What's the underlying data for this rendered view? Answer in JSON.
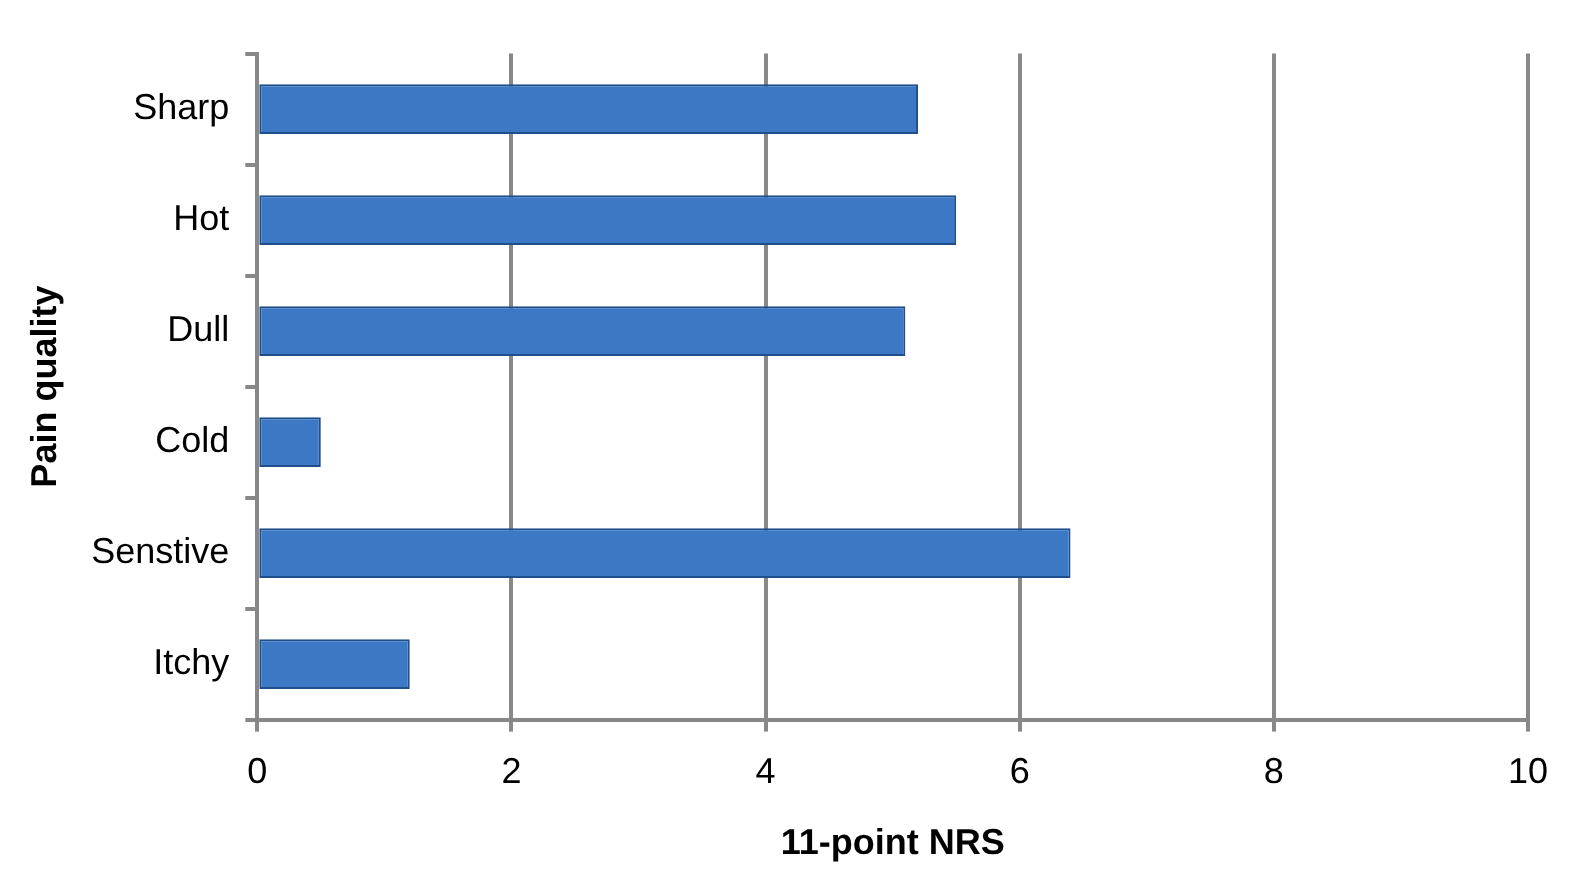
{
  "chart_data": {
    "type": "bar",
    "orientation": "horizontal",
    "xlabel": "11-point NRS",
    "ylabel": "Pain quality",
    "categories": [
      "Sharp",
      "Hot",
      "Dull",
      "Cold",
      "Senstive",
      "Itchy"
    ],
    "values": [
      5.2,
      5.5,
      5.1,
      0.5,
      6.4,
      1.2
    ],
    "color": "#3c78c3",
    "xlim": [
      0,
      10
    ],
    "xticks": [
      0,
      2,
      4,
      6,
      8,
      10
    ],
    "grid": "x",
    "legend": false
  }
}
